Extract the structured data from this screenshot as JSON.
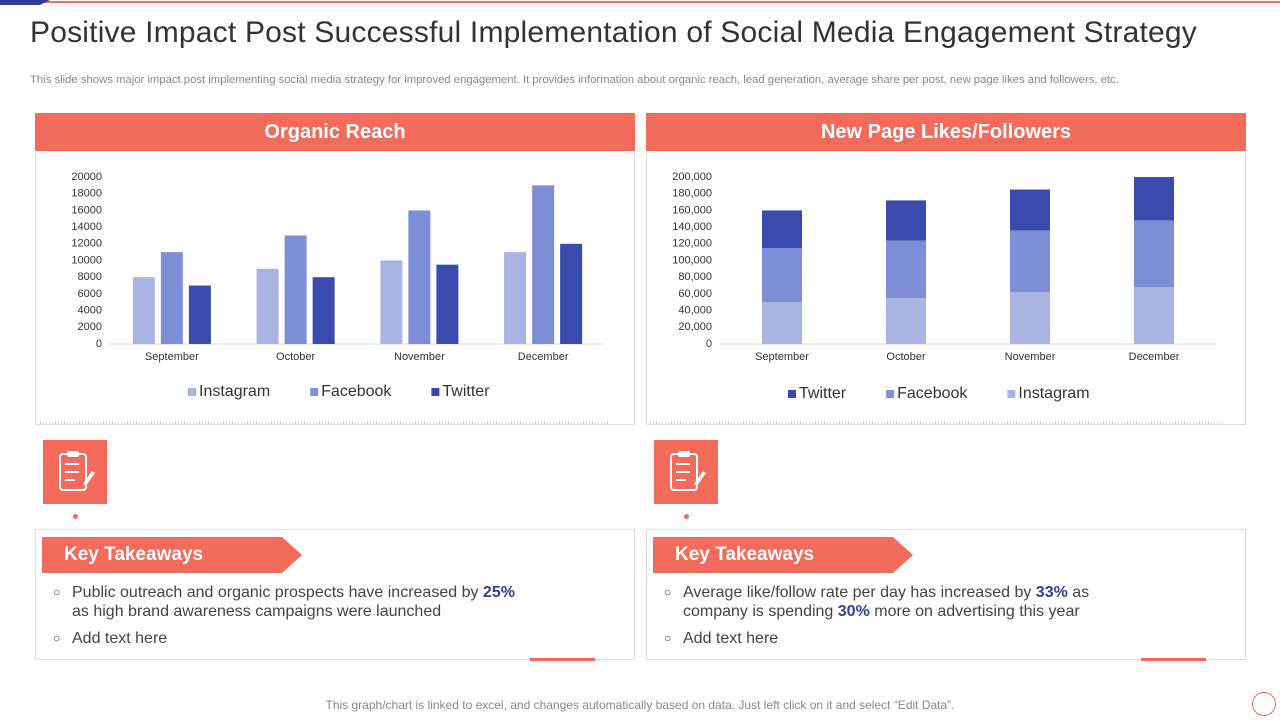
{
  "title": "Positive Impact Post Successful Implementation of Social Media Engagement Strategy",
  "subtitle": "This slide shows major impact post implementing social media strategy for improved engagement. It provides information about organic reach, lead generation, average share per post, new page likes and followers, etc.",
  "footer": "This graph/chart is linked to excel, and changes automatically based on data. Just left click on it and select “Edit Data”.",
  "chart_data": [
    {
      "type": "bar",
      "title": "Organic Reach",
      "categories": [
        "September",
        "October",
        "November",
        "December"
      ],
      "series": [
        {
          "name": "Instagram",
          "color": "#aab4e3",
          "values": [
            8000,
            9000,
            10000,
            11000
          ]
        },
        {
          "name": "Facebook",
          "color": "#7e8ed6",
          "values": [
            11000,
            13000,
            16000,
            19000
          ]
        },
        {
          "name": "Twitter",
          "color": "#3a4aad",
          "values": [
            7000,
            8000,
            9500,
            12000
          ]
        }
      ],
      "ylim": [
        0,
        20000
      ],
      "yticks": [
        0,
        2000,
        4000,
        6000,
        8000,
        10000,
        12000,
        14000,
        16000,
        18000,
        20000
      ],
      "grid": false,
      "legend": "bottom"
    },
    {
      "type": "stacked_bar",
      "title": "New Page Likes/Followers",
      "categories": [
        "September",
        "October",
        "November",
        "December"
      ],
      "series": [
        {
          "name": "Twitter",
          "color": "#3a4aad",
          "values": [
            45000,
            48000,
            49000,
            52000
          ]
        },
        {
          "name": "Facebook",
          "color": "#7e8ed6",
          "values": [
            65000,
            69000,
            74000,
            80000
          ]
        },
        {
          "name": "Instagram",
          "color": "#aab4e3",
          "values": [
            50000,
            55000,
            62000,
            68000
          ]
        }
      ],
      "ylim": [
        0,
        200000
      ],
      "yticks": [
        0,
        {
          "value": 20000,
          "label": "20,000"
        },
        {
          "value": 40000,
          "label": "40,000"
        },
        {
          "value": 60000,
          "label": "60,000"
        },
        {
          "value": 80000,
          "label": "80,000"
        },
        {
          "value": 100000,
          "label": "100,000"
        },
        {
          "value": 120000,
          "label": "120,000"
        },
        {
          "value": 140000,
          "label": "140,000"
        },
        {
          "value": 160000,
          "label": "160,000"
        },
        {
          "value": 180000,
          "label": "180,000"
        },
        {
          "value": 200000,
          "label": "200,000"
        }
      ],
      "grid": false,
      "legend": "bottom"
    }
  ],
  "takeaways": [
    {
      "heading": "Key Takeaways",
      "bullets": [
        [
          {
            "text": "Public outreach and organic prospects have increased by "
          },
          {
            "text": "25%",
            "emphasis": true
          },
          {
            "text": " as high brand awareness campaigns were launched"
          }
        ],
        [
          {
            "text": "Add text here"
          }
        ]
      ]
    },
    {
      "heading": "Key Takeaways",
      "bullets": [
        [
          {
            "text": "Average like/follow rate per day has increased by "
          },
          {
            "text": "33%",
            "emphasis": true
          },
          {
            "text": " as company is spending "
          },
          {
            "text": "30%",
            "emphasis": true
          },
          {
            "text": " more on advertising this year"
          }
        ],
        [
          {
            "text": "Add text here"
          }
        ]
      ]
    }
  ]
}
